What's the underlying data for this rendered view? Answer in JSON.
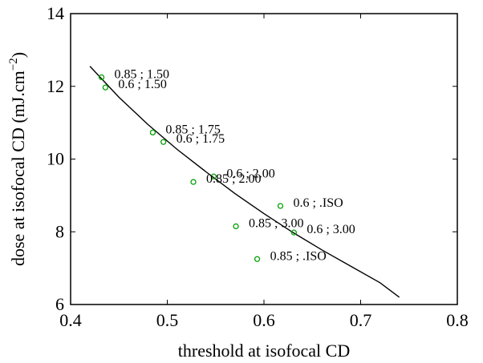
{
  "chart_data": {
    "type": "scatter",
    "xlabel": "threshold at isofocal CD",
    "ylabel_main": "dose at isofocal CD (mJ.cm",
    "ylabel_sup": "−2",
    "ylabel_close": ")",
    "xlim": [
      0.4,
      0.8
    ],
    "ylim": [
      6,
      14
    ],
    "xticks": [
      0.4,
      0.5,
      0.6,
      0.7,
      0.8
    ],
    "xtick_labels": [
      "0.4",
      "0.5",
      "0.6",
      "0.7",
      "0.8"
    ],
    "yticks": [
      6,
      8,
      10,
      12,
      14
    ],
    "ytick_labels": [
      "6",
      "8",
      "10",
      "12",
      "14"
    ],
    "grid": false,
    "marker_color": "#00a000",
    "line_color": "#000000",
    "points": [
      {
        "x": 0.432,
        "y": 12.25,
        "label": "0.85 ; 1.50"
      },
      {
        "x": 0.436,
        "y": 11.97,
        "label": "0.6 ; 1.50"
      },
      {
        "x": 0.485,
        "y": 10.73,
        "label": "0.85 ; 1.75"
      },
      {
        "x": 0.496,
        "y": 10.47,
        "label": "0.6 ; 1.75"
      },
      {
        "x": 0.548,
        "y": 9.52,
        "label": "0.6 ; 2.00"
      },
      {
        "x": 0.527,
        "y": 9.37,
        "label": "0.85 ; 2.00"
      },
      {
        "x": 0.617,
        "y": 8.71,
        "label": "0.6 ; .ISO"
      },
      {
        "x": 0.571,
        "y": 8.15,
        "label": "0.85 ; 3.00"
      },
      {
        "x": 0.631,
        "y": 7.98,
        "label": "0.6 ; 3.00"
      },
      {
        "x": 0.593,
        "y": 7.25,
        "label": "0.85 ; .ISO"
      }
    ],
    "fit_line": {
      "x": [
        0.42,
        0.45,
        0.48,
        0.51,
        0.54,
        0.57,
        0.6,
        0.63,
        0.66,
        0.69,
        0.72,
        0.74
      ],
      "y": [
        12.55,
        11.7,
        10.95,
        10.27,
        9.65,
        9.05,
        8.5,
        7.98,
        7.5,
        7.05,
        6.6,
        6.2
      ]
    }
  }
}
